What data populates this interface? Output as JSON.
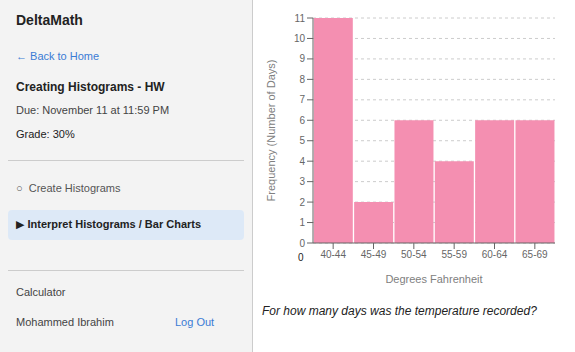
{
  "chart_data": {
    "type": "bar",
    "categories": [
      "40-44",
      "45-49",
      "50-54",
      "55-59",
      "60-64",
      "65-69"
    ],
    "values": [
      11,
      2,
      6,
      4,
      6,
      6
    ],
    "color": "#f48fb1",
    "xlabel": "Degrees Fahrenheit",
    "ylabel": "Frequency (Number of Days)",
    "ylim": [
      0,
      11
    ],
    "yticks": [
      0,
      1,
      2,
      3,
      4,
      5,
      6,
      7,
      8,
      9,
      10,
      11
    ],
    "grid": true,
    "annotations": [
      "DeltaMath",
      "← Back to Home",
      "Creating Histograms - HW",
      "Due: November 11 at 11:59 PM",
      "Grade: 30%",
      "○  Create Histograms",
      "▶ Interpret Histograms / Bar Charts",
      "Calculator",
      "Mohammed Ibrahim",
      "Log Out",
      "0",
      "For how many days was the temperature recorded?"
    ]
  }
}
